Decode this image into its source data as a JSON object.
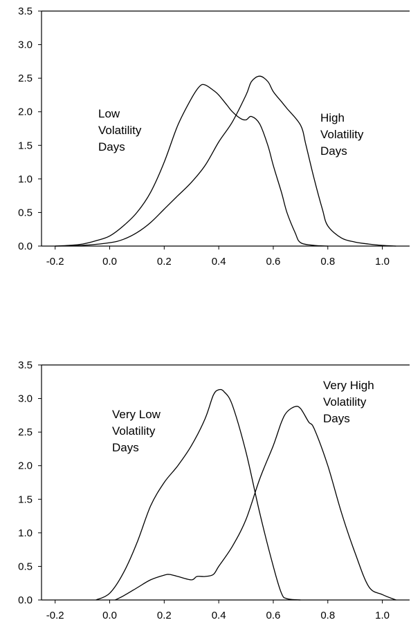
{
  "chart_data": [
    {
      "type": "line",
      "xlim": [
        -0.25,
        1.1
      ],
      "ylim": [
        0,
        3.5
      ],
      "xticks": [
        "-0.2",
        "0.0",
        "0.2",
        "0.4",
        "0.6",
        "0.8",
        "1.0"
      ],
      "yticks": [
        "0.0",
        "0.5",
        "1.0",
        "1.5",
        "2.0",
        "2.5",
        "3.0",
        "3.5"
      ],
      "grid": false,
      "annotations": [
        {
          "lines": [
            "Low",
            "Volatility",
            "Days"
          ]
        },
        {
          "lines": [
            "High",
            "Volatility",
            "Days"
          ]
        }
      ],
      "series": [
        {
          "x": [
            -0.2,
            -0.15,
            -0.1,
            -0.05,
            0.0,
            0.05,
            0.1,
            0.15,
            0.2,
            0.25,
            0.3,
            0.33,
            0.35,
            0.38,
            0.4,
            0.43,
            0.45,
            0.48,
            0.5,
            0.52,
            0.55,
            0.58,
            0.6,
            0.63,
            0.65,
            0.68,
            0.7,
            0.75,
            0.8
          ],
          "y": [
            0.0,
            0.01,
            0.03,
            0.08,
            0.15,
            0.3,
            0.5,
            0.8,
            1.25,
            1.8,
            2.2,
            2.38,
            2.4,
            2.32,
            2.25,
            2.1,
            2.0,
            1.9,
            1.88,
            1.93,
            1.82,
            1.5,
            1.2,
            0.8,
            0.5,
            0.2,
            0.05,
            0.01,
            0.0
          ]
        },
        {
          "x": [
            -0.2,
            -0.1,
            0.0,
            0.05,
            0.1,
            0.15,
            0.2,
            0.25,
            0.3,
            0.35,
            0.4,
            0.45,
            0.5,
            0.52,
            0.55,
            0.58,
            0.6,
            0.63,
            0.65,
            0.7,
            0.72,
            0.75,
            0.78,
            0.8,
            0.85,
            0.9,
            0.95,
            1.0,
            1.05
          ],
          "y": [
            0.0,
            0.01,
            0.05,
            0.1,
            0.2,
            0.35,
            0.55,
            0.75,
            0.95,
            1.2,
            1.55,
            1.85,
            2.25,
            2.45,
            2.53,
            2.45,
            2.3,
            2.15,
            2.05,
            1.8,
            1.5,
            1.0,
            0.55,
            0.3,
            0.12,
            0.06,
            0.03,
            0.01,
            0.0
          ]
        }
      ]
    },
    {
      "type": "line",
      "xlim": [
        -0.25,
        1.1
      ],
      "ylim": [
        0,
        3.5
      ],
      "xticks": [
        "-0.2",
        "0.0",
        "0.2",
        "0.4",
        "0.6",
        "0.8",
        "1.0"
      ],
      "yticks": [
        "0.0",
        "0.5",
        "1.0",
        "1.5",
        "2.0",
        "2.5",
        "3.0",
        "3.5"
      ],
      "grid": false,
      "annotations": [
        {
          "lines": [
            "Very Low",
            "Volatility",
            "Days"
          ]
        },
        {
          "lines": [
            "Very High",
            "Volatility",
            "Days"
          ]
        }
      ],
      "series": [
        {
          "x": [
            -0.05,
            0.0,
            0.05,
            0.1,
            0.15,
            0.2,
            0.25,
            0.3,
            0.35,
            0.38,
            0.4,
            0.42,
            0.45,
            0.5,
            0.55,
            0.6,
            0.63,
            0.65,
            0.7
          ],
          "y": [
            0.0,
            0.1,
            0.4,
            0.85,
            1.4,
            1.75,
            2.0,
            2.3,
            2.7,
            3.05,
            3.13,
            3.1,
            2.9,
            2.2,
            1.3,
            0.5,
            0.1,
            0.02,
            0.0
          ]
        },
        {
          "x": [
            0.02,
            0.05,
            0.1,
            0.15,
            0.2,
            0.22,
            0.25,
            0.3,
            0.32,
            0.35,
            0.38,
            0.4,
            0.45,
            0.5,
            0.55,
            0.6,
            0.63,
            0.65,
            0.68,
            0.7,
            0.73,
            0.75,
            0.8,
            0.85,
            0.9,
            0.95,
            1.0,
            1.05
          ],
          "y": [
            0.0,
            0.06,
            0.18,
            0.3,
            0.37,
            0.38,
            0.35,
            0.3,
            0.35,
            0.35,
            0.38,
            0.5,
            0.8,
            1.2,
            1.8,
            2.3,
            2.65,
            2.8,
            2.88,
            2.85,
            2.65,
            2.55,
            2.0,
            1.3,
            0.7,
            0.2,
            0.08,
            0.0
          ]
        }
      ]
    }
  ]
}
